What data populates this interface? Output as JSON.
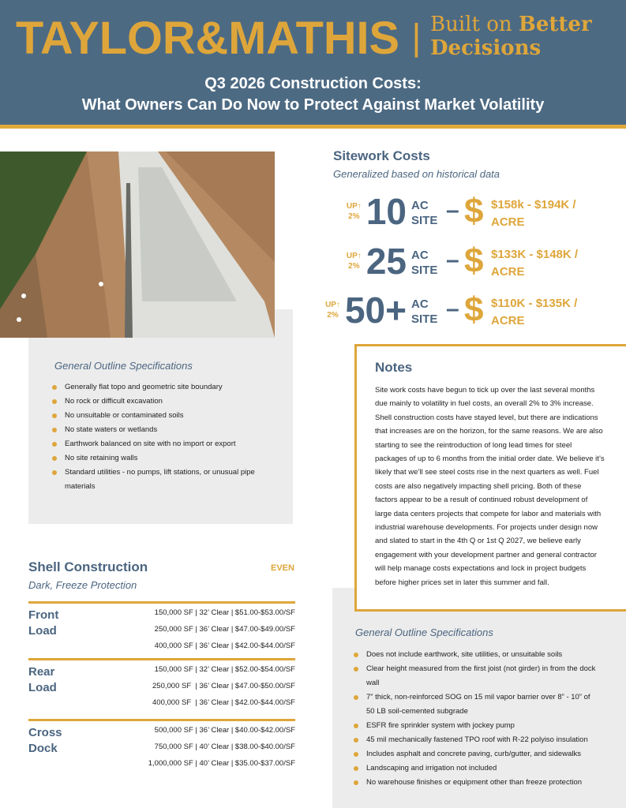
{
  "header": {
    "logo": "TAYLOR&MATHIS",
    "divider": "|",
    "tagline_line_1_regular": "Built on",
    "tagline_line_1_bold": "Better",
    "tagline_line_2": "Decisions",
    "title_line_1": "Q3 2026 Construction Costs:",
    "title_line_2": "What Owners Can Do Now to Protect Against Market Volatility"
  },
  "sitework": {
    "title": "Sitework Costs",
    "subtitle": "Generalized based on historical data",
    "rows": [
      {
        "change": "UP↑",
        "change_pct": "2%",
        "size": "10",
        "unit_1": "AC",
        "unit_2": "SITE",
        "dash": "–",
        "currency": "$",
        "range_line_1": "$158k - $194K /",
        "range_line_2": "ACRE"
      },
      {
        "change": "UP↑",
        "change_pct": "2%",
        "size": "25",
        "unit_1": "AC",
        "unit_2": "SITE",
        "dash": "–",
        "currency": "$",
        "range_line_1": "$133K - $148K /",
        "range_line_2": "ACRE"
      },
      {
        "change": "UP↑",
        "change_pct": "2%",
        "size": "50+",
        "unit_1": "AC",
        "unit_2": "SITE",
        "dash": "–",
        "currency": "$",
        "range_line_1": "$110K - $135K /",
        "range_line_2": "ACRE"
      }
    ]
  },
  "site_specs": {
    "title": "General Outline Specifications",
    "items": [
      "Generally flat topo and geometric site boundary",
      "No rock or difficult excavation",
      "No unsuitable or contaminated soils",
      "No state waters or wetlands",
      "Earthwork balanced on site with no import or export",
      "No site retaining walls",
      "Standard utilities - no pumps, lift stations, or unusual pipe materials"
    ]
  },
  "notes": {
    "title": "Notes",
    "body": "Site work costs have begun to tick up over the last several months due mainly to volatility in fuel costs, an overall 2% to 3% increase. Shell construction costs have stayed level, but there are indications that increases are on the horizon, for the same reasons. We are also starting to see the reintroduction of long lead times for steel packages of up to 6 months from the initial order date. We believe it’s likely that we’ll see steel costs rise in the next quarters as well. Fuel costs are also negatively impacting shell pricing. Both of these factors appear to be a result of continued robust development of large data centers projects that compete for labor and materials with industrial warehouse developments. For projects under design now and slated to start in the 4th Q or 1st Q 2027, we believe early engagement with your development partner and general contractor will help manage costs expectations and lock in project budgets before higher prices set in later this summer and fall."
  },
  "shell": {
    "title": "Shell Construction",
    "status": "EVEN",
    "subtitle": "Dark, Freeze Protection",
    "groups": [
      {
        "label": "Front Load",
        "lines": [
          "150,000 SF | 32’ Clear | $51.00-$53.00/SF",
          "250,000 SF | 36’ Clear | $47.00-$49.00/SF",
          "400,000 SF | 36’ Clear | $42.00-$44.00/SF"
        ]
      },
      {
        "label": "Rear Load",
        "lines": [
          "150,000 SF | 32’ Clear | $52.00-$54.00/SF",
          "250,000 SF  | 36’ Clear | $47.00-$50.00/SF",
          "400,000 SF  | 36’ Clear | $42.00-$44.00/SF"
        ]
      },
      {
        "label": "Cross Dock",
        "lines": [
          "500,000 SF | 36’ Clear | $40.00-$42.00/SF",
          "750,000 SF | 40’ Clear | $38.00-$40.00/SF",
          "1,000,000 SF | 40’ Clear | $35.00-$37.00/SF"
        ]
      }
    ]
  },
  "shell_specs": {
    "title": "General Outline Specifications",
    "items": [
      "Does not include earthwork, site utilities, or unsuitable soils",
      "Clear height measured from the first joist (not girder) in from the dock wall",
      "7” thick, non-reinforced SOG on 15 mil vapor barrier over 8” - 10” of 50 LB soil-cemented subgrade",
      "ESFR fire sprinkler system with jockey pump",
      "45 mil mechanically fastened TPO roof with R-22 polyiso insulation",
      "Includes asphalt and concrete paving, curb/gutter, and sidewalks",
      "Landscaping and irrigation not included",
      "No warehouse finishes or equipment other than freeze protection"
    ]
  }
}
